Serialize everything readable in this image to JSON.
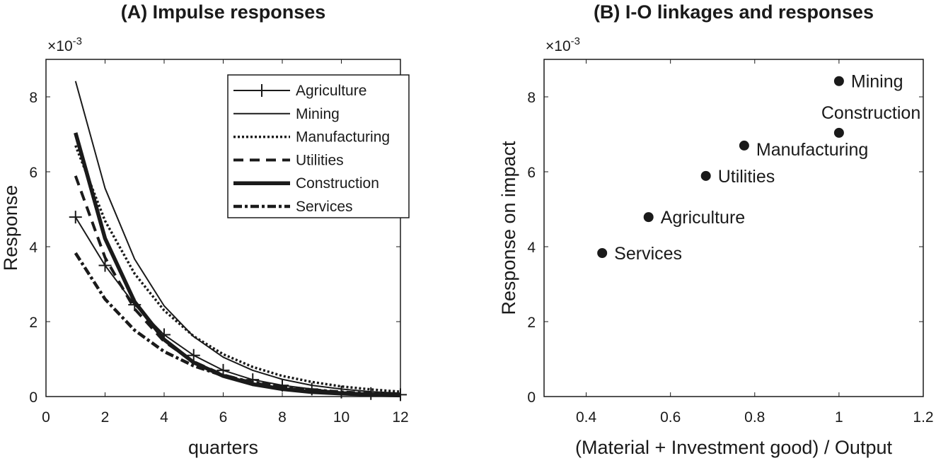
{
  "chart_data": [
    {
      "type": "line",
      "title": "(A) Impulse responses",
      "xlabel": "quarters",
      "ylabel": "Response",
      "y_multiplier": "×10",
      "y_exponent": "-3",
      "xlim": [
        0,
        12
      ],
      "ylim": [
        0,
        9
      ],
      "xticks": [
        0,
        2,
        4,
        6,
        8,
        10,
        12
      ],
      "yticks": [
        0,
        2,
        4,
        6,
        8
      ],
      "grid": false,
      "legend_placement": "top-right",
      "x": [
        1,
        2,
        3,
        4,
        5,
        6,
        7,
        8,
        9,
        10,
        11,
        12
      ],
      "series": [
        {
          "name": "Agriculture",
          "style": "solid-plus",
          "values": [
            4.79,
            3.5,
            2.45,
            1.65,
            1.1,
            0.7,
            0.45,
            0.3,
            0.2,
            0.12,
            0.08,
            0.05
          ]
        },
        {
          "name": "Mining",
          "style": "solid",
          "values": [
            8.42,
            5.56,
            3.67,
            2.42,
            1.6,
            1.05,
            0.7,
            0.46,
            0.3,
            0.2,
            0.13,
            0.09
          ]
        },
        {
          "name": "Manufacturing",
          "style": "dotted",
          "values": [
            6.7,
            4.69,
            3.28,
            2.3,
            1.61,
            1.13,
            0.79,
            0.55,
            0.39,
            0.27,
            0.19,
            0.13
          ]
        },
        {
          "name": "Utilities",
          "style": "dashed",
          "values": [
            5.89,
            3.71,
            2.34,
            1.47,
            0.93,
            0.58,
            0.37,
            0.23,
            0.15,
            0.1,
            0.07,
            0.05
          ]
        },
        {
          "name": "Construction",
          "style": "thick",
          "values": [
            7.04,
            4.22,
            2.53,
            1.52,
            0.91,
            0.55,
            0.33,
            0.2,
            0.12,
            0.08,
            0.05,
            0.03
          ]
        },
        {
          "name": "Services",
          "style": "dashdot",
          "values": [
            3.83,
            2.6,
            1.77,
            1.2,
            0.82,
            0.56,
            0.38,
            0.26,
            0.18,
            0.12,
            0.08,
            0.06
          ]
        }
      ]
    },
    {
      "type": "scatter",
      "title": "(B) I-O linkages and responses",
      "xlabel": "(Material + Investment good) / Output",
      "ylabel": "Response on impact",
      "y_multiplier": "×10",
      "y_exponent": "-3",
      "xlim": [
        0.3,
        1.2
      ],
      "ylim": [
        0,
        9
      ],
      "xticks": [
        "0.4",
        "0.6",
        "0.8",
        "1",
        "1.2"
      ],
      "yticks": [
        0,
        2,
        4,
        6,
        8
      ],
      "grid": false,
      "points": [
        {
          "label": "Mining",
          "x": 1.0,
          "y": 8.42
        },
        {
          "label": "Construction",
          "x": 1.0,
          "y": 7.04
        },
        {
          "label": "Manufacturing",
          "x": 0.775,
          "y": 6.7
        },
        {
          "label": "Utilities",
          "x": 0.684,
          "y": 5.89
        },
        {
          "label": "Agriculture",
          "x": 0.548,
          "y": 4.79
        },
        {
          "label": "Services",
          "x": 0.438,
          "y": 3.83
        }
      ]
    }
  ]
}
